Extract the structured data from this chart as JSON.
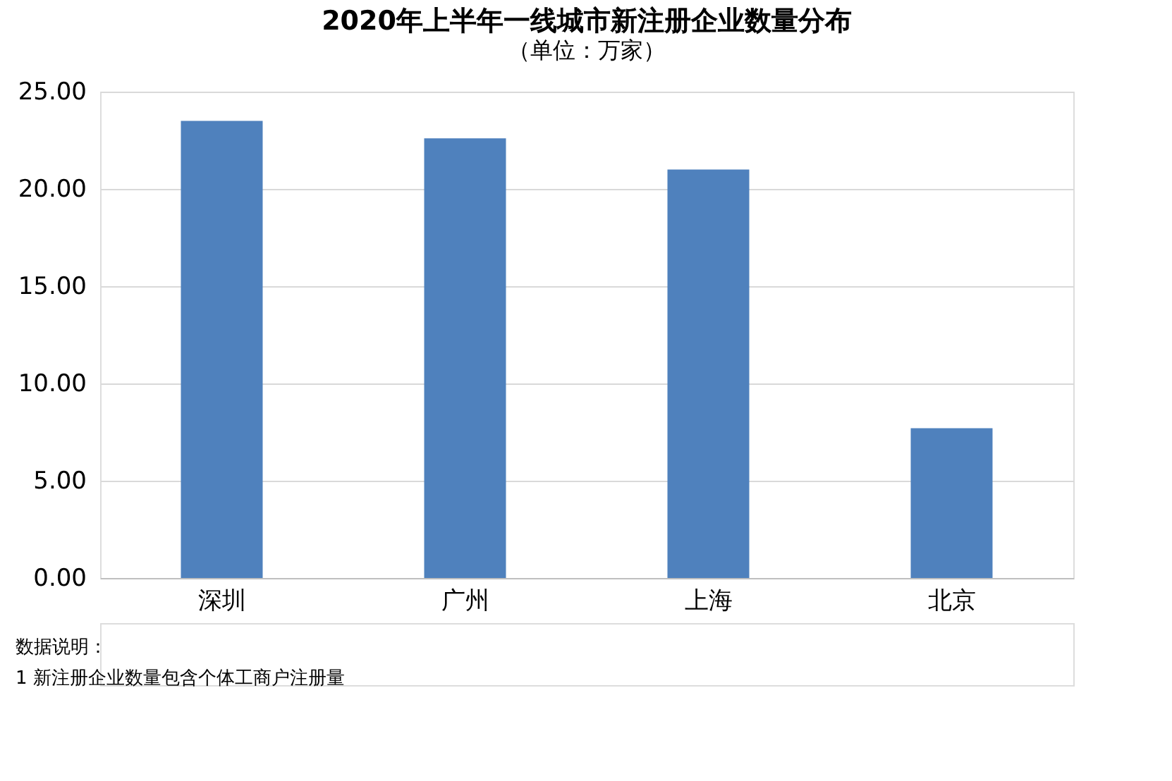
{
  "chart_data": {
    "type": "bar",
    "title": "2020年上半年一线城市新注册企业数量分布",
    "subtitle": "（单位：万家）",
    "categories": [
      "深圳",
      "广州",
      "上海",
      "北京"
    ],
    "values": [
      23.5,
      22.6,
      21.0,
      7.7
    ],
    "color": "#4f81bd",
    "ylim": [
      0,
      25
    ],
    "yticks": [
      {
        "value": 0,
        "label": "0.00"
      },
      {
        "value": 5,
        "label": "5.00"
      },
      {
        "value": 10,
        "label": "10.00"
      },
      {
        "value": 15,
        "label": "15.00"
      },
      {
        "value": 20,
        "label": "20.00"
      },
      {
        "value": 25,
        "label": "25.00"
      }
    ],
    "grid": "y",
    "annotations": [
      "数据说明：",
      "1 新注册企业数量包含个体工商户注册量"
    ]
  }
}
